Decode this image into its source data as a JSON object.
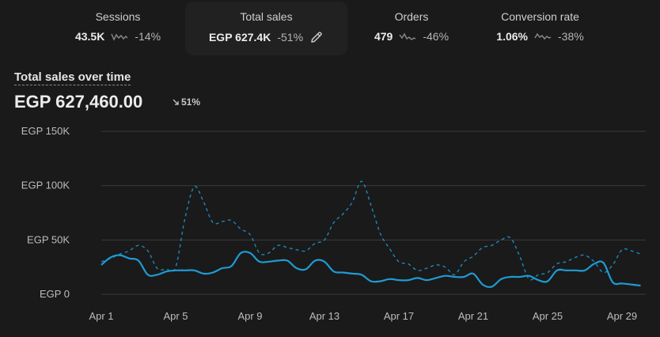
{
  "metrics": [
    {
      "label": "Sessions",
      "value": "43.5K",
      "change": "-14%",
      "spark_icon": "sparkline-icon"
    },
    {
      "label": "Total sales",
      "value": "EGP 627.4K",
      "change": "-51%",
      "action_icon": "pencil-edit-icon"
    },
    {
      "label": "Orders",
      "value": "479",
      "change": "-46%",
      "spark_icon": "sparkline-icon"
    },
    {
      "label": "Conversion rate",
      "value": "1.06%",
      "change": "-38%",
      "spark_icon": "sparkline-icon"
    }
  ],
  "chart": {
    "title": "Total sales over time",
    "total": "EGP 627,460.00",
    "change": "51%",
    "change_icon": "arrow-down-right-icon"
  },
  "chart_data": {
    "type": "line",
    "title": "Total sales over time",
    "y_tick_labels": [
      "EGP 150K",
      "EGP 100K",
      "EGP 50K",
      "EGP 0"
    ],
    "y_ticks": [
      150000,
      100000,
      50000,
      0
    ],
    "ylim": [
      0,
      150000
    ],
    "x_tick_labels": [
      "Apr 1",
      "Apr 5",
      "Apr 9",
      "Apr 13",
      "Apr 17",
      "Apr 21",
      "Apr 25",
      "Apr 29"
    ],
    "x_tick_days": [
      1,
      5,
      9,
      13,
      17,
      21,
      25,
      29
    ],
    "grid": true,
    "series": [
      {
        "style": "solid",
        "color": "#1f9bd4",
        "x": [
          1,
          1.5,
          2,
          2.5,
          3,
          3.5,
          4,
          4.5,
          5,
          5.5,
          6,
          6.5,
          7,
          7.5,
          8,
          8.5,
          9,
          9.5,
          10,
          10.5,
          11,
          11.5,
          12,
          12.5,
          13,
          13.5,
          14,
          14.5,
          15,
          15.5,
          16,
          16.5,
          17,
          17.5,
          18,
          18.5,
          19,
          19.5,
          20,
          20.5,
          21,
          21.5,
          22,
          22.5,
          23,
          23.5,
          24,
          24.5,
          25,
          25.5,
          26,
          26.5,
          27,
          27.5,
          28,
          28.5,
          29,
          29.5,
          30
        ],
        "values": [
          27000,
          34000,
          36000,
          33000,
          31000,
          18000,
          18000,
          21000,
          22000,
          22000,
          22000,
          19000,
          20000,
          24000,
          26000,
          38000,
          38000,
          30000,
          30000,
          31000,
          31000,
          24000,
          23000,
          31000,
          30000,
          21000,
          20000,
          19000,
          18000,
          12000,
          12000,
          14000,
          13000,
          13000,
          15000,
          13000,
          15000,
          17000,
          16000,
          16000,
          19000,
          9000,
          7000,
          14000,
          16000,
          16000,
          17000,
          13000,
          12000,
          22000,
          22000,
          22000,
          22000,
          28000,
          29000,
          11000,
          10000,
          9000,
          8000
        ]
      },
      {
        "style": "dashed",
        "color": "#1f9bd4",
        "x": [
          1,
          1.5,
          2,
          2.5,
          3,
          3.5,
          4,
          4.5,
          5,
          5.5,
          6,
          6.5,
          7,
          7.5,
          8,
          8.5,
          9,
          9.5,
          10,
          10.5,
          11,
          11.5,
          12,
          12.5,
          13,
          13.5,
          14,
          14.5,
          15,
          15.5,
          16,
          16.5,
          17,
          17.5,
          18,
          18.5,
          19,
          19.5,
          20,
          20.5,
          21,
          21.5,
          22,
          22.5,
          23,
          23.5,
          24,
          24.5,
          25,
          25.5,
          26,
          26.5,
          27,
          27.5,
          28,
          28.5,
          29,
          29.5,
          30
        ],
        "values": [
          30000,
          33000,
          37000,
          40000,
          45000,
          40000,
          24000,
          23000,
          25000,
          70000,
          99000,
          85000,
          66000,
          67000,
          68000,
          60000,
          55000,
          38000,
          38000,
          45000,
          43000,
          41000,
          40000,
          47000,
          50000,
          66000,
          74000,
          85000,
          104000,
          82000,
          56000,
          42000,
          30000,
          28000,
          22000,
          24000,
          27000,
          25000,
          18000,
          30000,
          35000,
          43000,
          45000,
          50000,
          52000,
          35000,
          14000,
          18000,
          20000,
          28000,
          30000,
          34000,
          36000,
          30000,
          20000,
          27000,
          41000,
          40000,
          37000
        ]
      }
    ]
  },
  "colors": {
    "background": "#1a1a1a",
    "tile_active": "#212121",
    "gridline": "#3a3a3a",
    "series": "#1f9bd4"
  }
}
